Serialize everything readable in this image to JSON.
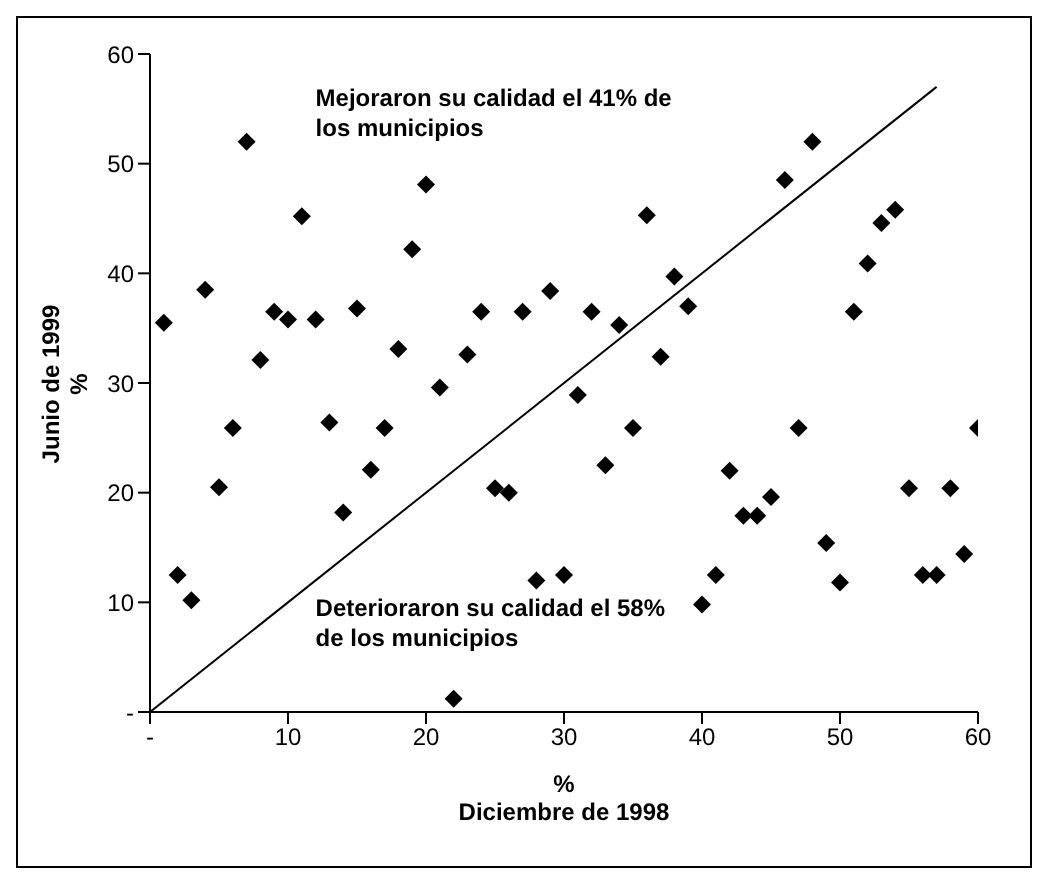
{
  "chart_data": {
    "type": "scatter",
    "xlabel": "%\nDiciembre de 1998",
    "ylabel": "Junio de 1999\n%",
    "annotations": [
      "Mejoraron su calidad el 41% de los municipios",
      "Deterioraron su calidad el 58% de los municipios"
    ],
    "xlim": [
      0,
      60
    ],
    "ylim": [
      0,
      60
    ],
    "xticks": [
      {
        "value": 0,
        "label": "-"
      },
      10,
      20,
      30,
      40,
      50,
      60
    ],
    "yticks": [
      {
        "value": 0,
        "label": "-"
      },
      10,
      20,
      30,
      40,
      50,
      60
    ],
    "grid": false,
    "legend": false,
    "marker": "diamond",
    "series": [
      {
        "color": "#000000",
        "x": [
          1,
          2,
          3,
          4,
          5,
          6,
          7,
          8,
          9,
          10,
          11,
          12,
          13,
          14,
          15,
          16,
          17,
          18,
          19,
          20,
          21,
          22,
          23,
          24,
          25,
          26,
          27,
          28,
          29,
          30,
          31,
          32,
          33,
          34,
          35,
          36,
          37,
          38,
          39,
          40,
          41,
          42,
          43,
          44,
          45,
          46,
          47,
          48,
          49,
          50,
          51,
          52,
          53,
          54,
          55,
          56,
          57,
          58,
          59,
          60
        ],
        "values": [
          35.5,
          12.5,
          10.2,
          38.5,
          20.5,
          25.9,
          52,
          32.1,
          36.5,
          35.8,
          45.2,
          35.8,
          26.4,
          18.2,
          36.8,
          22.1,
          25.9,
          33.1,
          42.2,
          48.1,
          29.6,
          1.2,
          32.6,
          36.5,
          20.4,
          20,
          36.5,
          12,
          38.4,
          12.5,
          28.9,
          36.5,
          22.5,
          35.3,
          25.9,
          45.3,
          32.4,
          39.7,
          37,
          9.8,
          12.5,
          22,
          17.9,
          17.9,
          19.6,
          48.5,
          25.9,
          52,
          15.4,
          11.8,
          36.5,
          40.9,
          44.6,
          45.8,
          20.4,
          12.5,
          12.5,
          20.4,
          14.4,
          25.9
        ]
      },
      {
        "type": "line",
        "color": "#000000",
        "marker": "none",
        "line_style": "solid",
        "x": [
          0,
          57
        ],
        "values": [
          0,
          57
        ]
      }
    ]
  }
}
